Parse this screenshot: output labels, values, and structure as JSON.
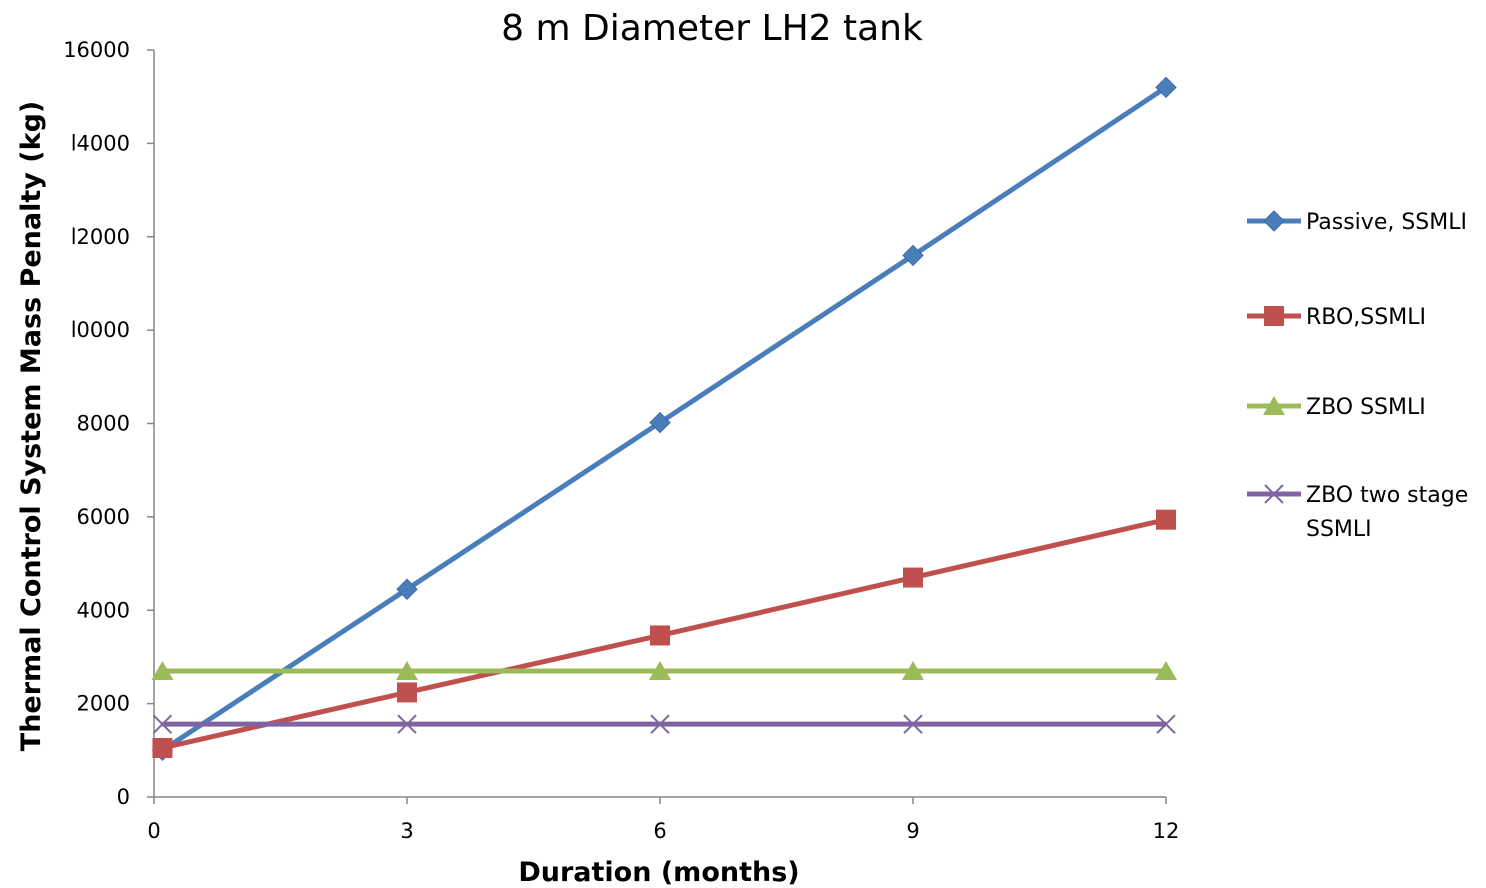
{
  "chart_data": {
    "type": "line",
    "title": "8 m Diameter LH2 tank",
    "xlabel": "Duration (months)",
    "ylabel": "Thermal Control System Mass Penalty (kg)",
    "x": [
      0,
      3,
      6,
      9,
      12
    ],
    "x_ticks": [
      "0",
      "3",
      "6",
      "9",
      "12"
    ],
    "xlim": [
      0,
      12
    ],
    "ylim": [
      0,
      16000
    ],
    "y_ticks": [
      "0",
      "2000",
      "4000",
      "6000",
      "8000",
      "l0000",
      "l2000",
      "l4000",
      "16000"
    ],
    "grid": false,
    "legend_position": "right",
    "series": [
      {
        "name": "Passive, SSMLI",
        "values": [
          1000,
          4450,
          8020,
          11600,
          15200
        ],
        "color": "#4a7ebb",
        "marker": "diamond"
      },
      {
        "name": "RBO,SSMLI",
        "values": [
          1050,
          2240,
          3460,
          4700,
          5940
        ],
        "color": "#c0504d",
        "marker": "square"
      },
      {
        "name": "ZBO SSMLI",
        "values": [
          2700,
          2700,
          2700,
          2700,
          2700
        ],
        "color": "#9bbb59",
        "marker": "triangle"
      },
      {
        "name": "ZBO two stage SSMLI",
        "legend_lines": [
          "ZBO two stage",
          "SSMLI"
        ],
        "values": [
          1560,
          1560,
          1560,
          1560,
          1560
        ],
        "color": "#8064a2",
        "marker": "x"
      }
    ]
  }
}
